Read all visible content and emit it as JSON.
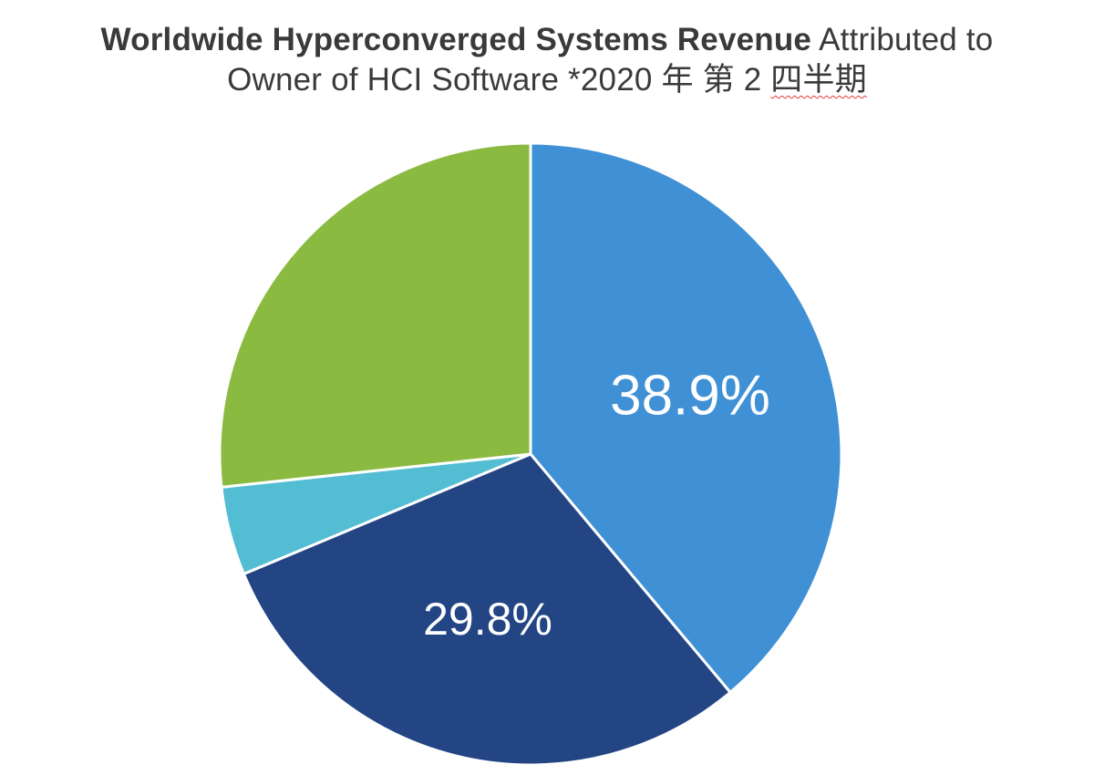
{
  "chart_data": {
    "type": "pie",
    "title_bold": "Worldwide Hyperconverged Systems Revenue",
    "title_rest_line1": " Attributed to",
    "title_line2_prefix": "Owner of HCI Software *2020 年 第 2 ",
    "title_line2_underlined": "四半期",
    "slices": [
      {
        "value": 38.9,
        "label": "38.9%",
        "color": "#3f90d5"
      },
      {
        "value": 29.8,
        "label": "29.8%",
        "color": "#234583"
      },
      {
        "value": 4.6,
        "label": "",
        "color": "#53bdd3"
      },
      {
        "value": 26.7,
        "label": "",
        "color": "#8bba41"
      }
    ]
  }
}
